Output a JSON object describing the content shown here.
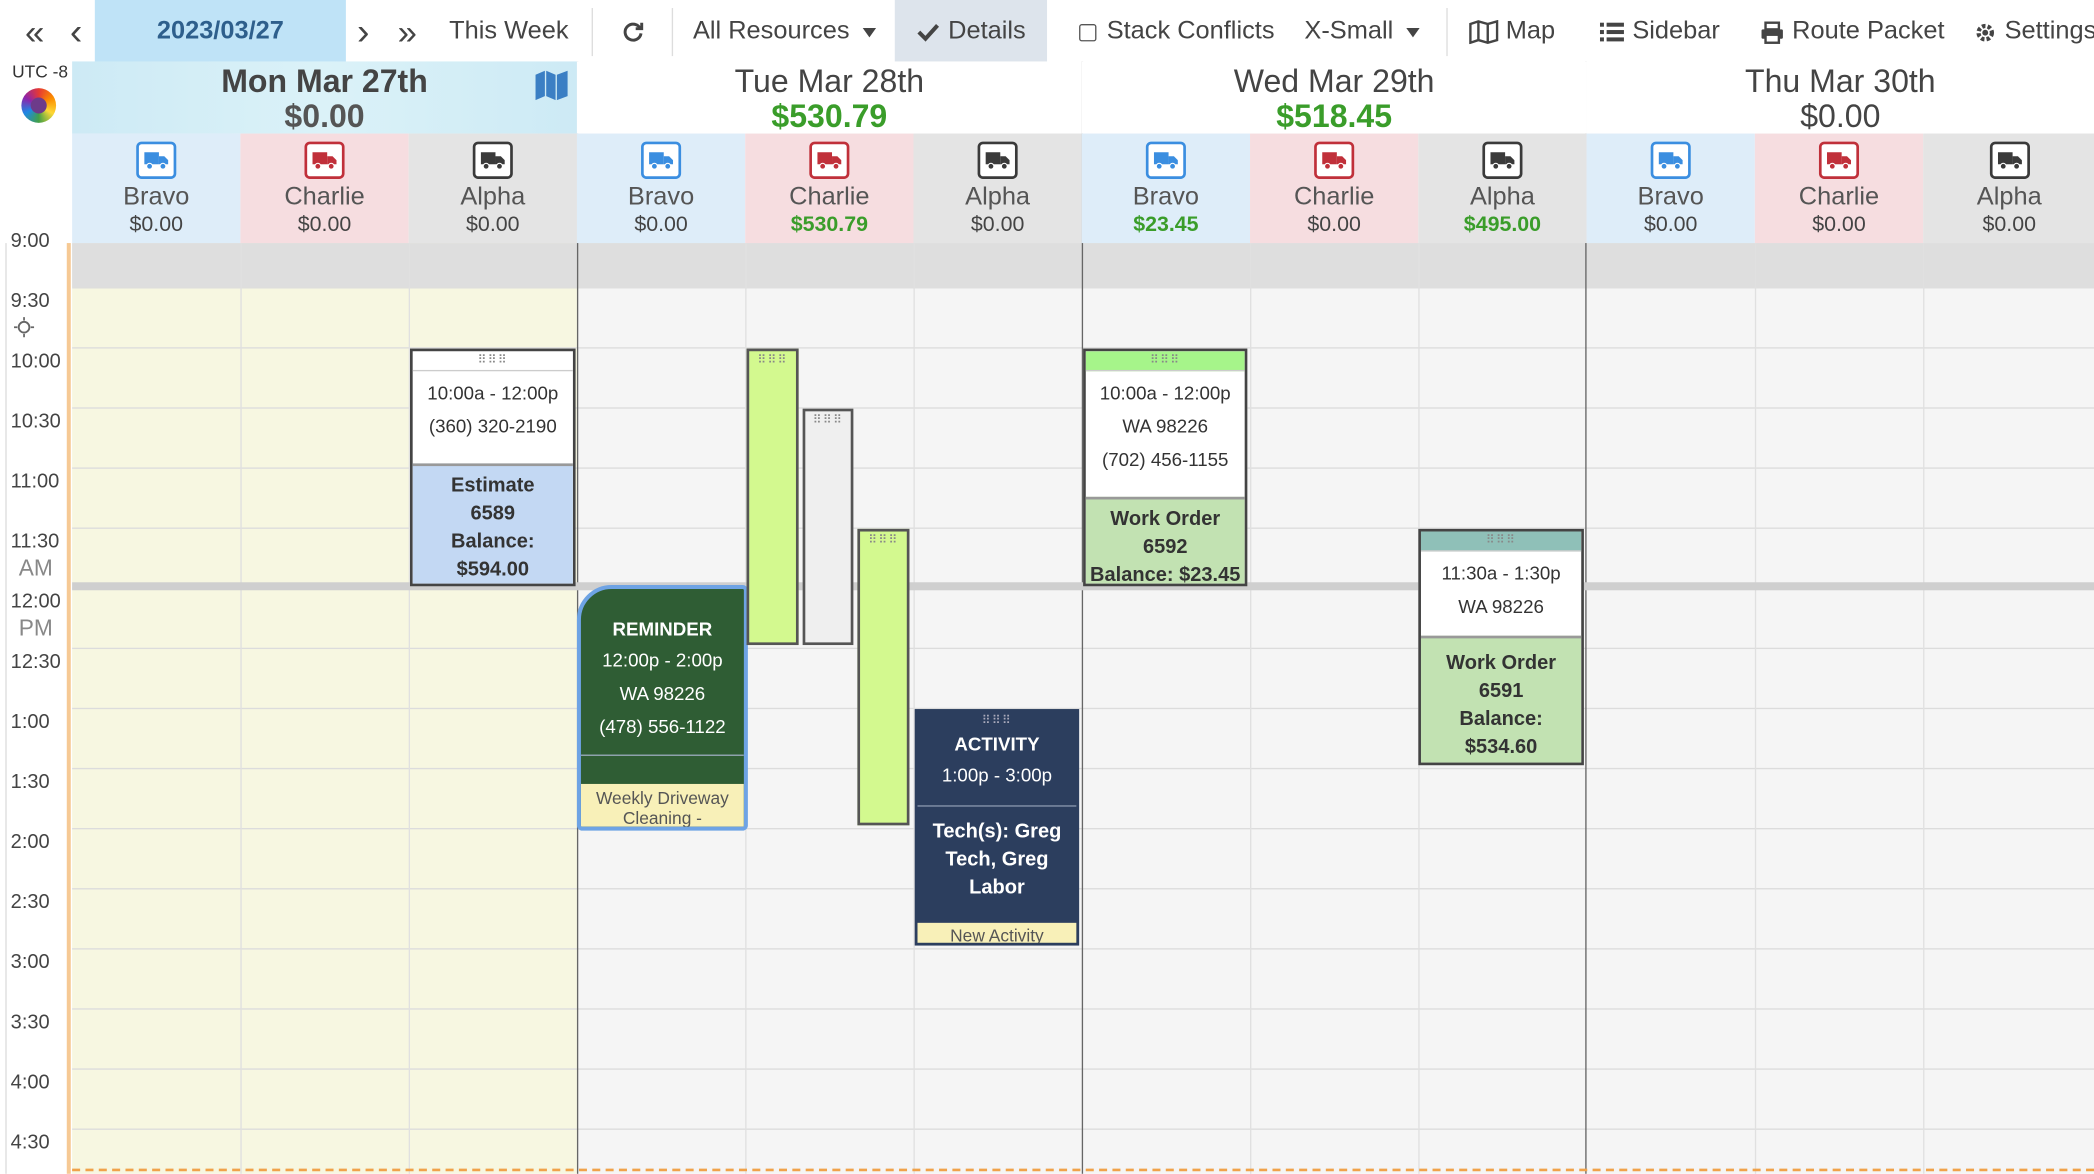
{
  "toolbar": {
    "prev_week": "«",
    "prev_day": "‹",
    "date": "2023/03/27",
    "next_day": "›",
    "next_week": "»",
    "this_week": "This Week",
    "resources": "All Resources",
    "details": "Details",
    "stack_conflicts": "Stack Conflicts",
    "size": "X-Small",
    "map": "Map",
    "sidebar": "Sidebar",
    "route_packet": "Route Packet",
    "settings": "Settings"
  },
  "timezone": "UTC -8",
  "days": [
    {
      "name": "Mon Mar 27th",
      "total": "$0.00",
      "resources": [
        {
          "name": "Bravo",
          "total": "$0.00"
        },
        {
          "name": "Charlie",
          "total": "$0.00"
        },
        {
          "name": "Alpha",
          "total": "$0.00"
        }
      ]
    },
    {
      "name": "Tue Mar 28th",
      "total": "$530.79",
      "resources": [
        {
          "name": "Bravo",
          "total": "$0.00"
        },
        {
          "name": "Charlie",
          "total": "$530.79"
        },
        {
          "name": "Alpha",
          "total": "$0.00"
        }
      ]
    },
    {
      "name": "Wed Mar 29th",
      "total": "$518.45",
      "resources": [
        {
          "name": "Bravo",
          "total": "$23.45"
        },
        {
          "name": "Charlie",
          "total": "$0.00"
        },
        {
          "name": "Alpha",
          "total": "$495.00"
        }
      ]
    },
    {
      "name": "Thu Mar 30th",
      "total": "$0.00",
      "resources": [
        {
          "name": "Bravo",
          "total": "$0.00"
        },
        {
          "name": "Charlie",
          "total": "$0.00"
        },
        {
          "name": "Alpha",
          "total": "$0.00"
        }
      ]
    }
  ],
  "times": [
    "9:00",
    "9:30",
    "10:00",
    "10:30",
    "11:00",
    "11:30",
    "12:00",
    "12:30",
    "1:00",
    "1:30",
    "2:00",
    "2:30",
    "3:00",
    "3:30",
    "4:00",
    "4:30"
  ],
  "am": "AM",
  "pm": "PM",
  "events": {
    "estimate": {
      "time": "10:00a - 12:00p",
      "phone": "(360) 320-2190",
      "title": "Estimate",
      "number": "6589",
      "balance_label": "Balance:",
      "balance": "$594.00"
    },
    "reminder": {
      "title": "REMINDER",
      "time": "12:00p - 2:00p",
      "location": "WA 98226",
      "phone": "(478) 556-1122",
      "note": "Weekly Driveway Cleaning -"
    },
    "activity": {
      "title": "ACTIVITY",
      "time": "1:00p - 3:00p",
      "techs": "Tech(s): Greg Tech, Greg Labor",
      "note": "New Activity"
    },
    "wo6592": {
      "time": "10:00a - 12:00p",
      "location": "WA 98226",
      "phone": "(702) 456-1155",
      "title": "Work Order",
      "number": "6592",
      "balance": "Balance: $23.45"
    },
    "wo6591": {
      "time": "11:30a - 1:30p",
      "location": "WA 98226",
      "title": "Work Order",
      "number": "6591",
      "balance_label": "Balance:",
      "balance": "$534.60"
    }
  }
}
